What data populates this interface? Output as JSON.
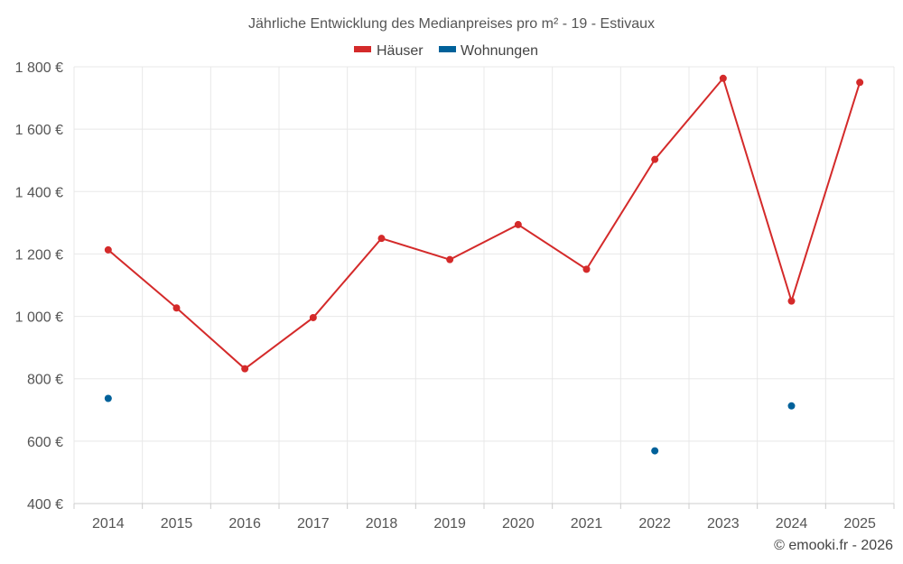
{
  "chart_data": {
    "type": "line",
    "title": "Jährliche Entwicklung des Medianpreises pro m² - 19 - Estivaux",
    "xlabel": "",
    "ylabel": "",
    "categories": [
      "2014",
      "2015",
      "2016",
      "2017",
      "2018",
      "2019",
      "2020",
      "2021",
      "2022",
      "2023",
      "2024",
      "2025"
    ],
    "ylim": [
      400,
      1800
    ],
    "yticks": [
      400,
      600,
      800,
      1000,
      1200,
      1400,
      1600,
      1800
    ],
    "ytick_labels": [
      "400 €",
      "600 €",
      "800 €",
      "1 000 €",
      "1 200 €",
      "1 400 €",
      "1 600 €",
      "1 800 €"
    ],
    "legend_position": "top-center",
    "grid": true,
    "series": [
      {
        "name": "Häuser",
        "color": "#d42a2a",
        "values": [
          1213,
          1027,
          832,
          996,
          1250,
          1182,
          1294,
          1151,
          1503,
          1763,
          1049,
          1750
        ]
      },
      {
        "name": "Wohnungen",
        "color": "#00619a",
        "values": [
          737,
          null,
          null,
          null,
          null,
          null,
          null,
          null,
          569,
          null,
          713,
          null
        ]
      }
    ]
  },
  "credit": "© emooki.fr - 2026"
}
